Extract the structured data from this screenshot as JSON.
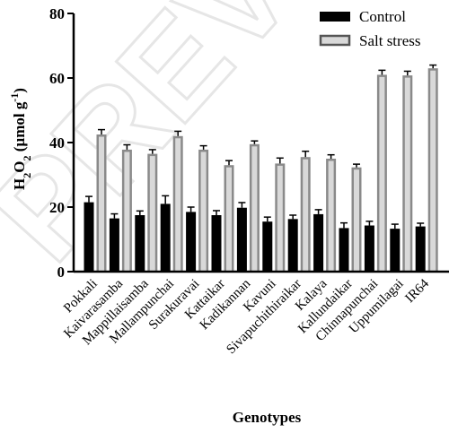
{
  "chart_data": {
    "type": "bar",
    "title": "",
    "xlabel": "Genotypes",
    "ylabel_main": "H",
    "ylabel_sub1": "2",
    "ylabel_mid": "O",
    "ylabel_sub2": "2",
    "ylabel_unit": " (µmol g",
    "ylabel_sup": "-1",
    "ylabel_end": ")",
    "ylim": [
      0,
      80
    ],
    "yticks": [
      0,
      20,
      40,
      60,
      80
    ],
    "categories": [
      "Pokkali",
      "Kaivarasamba",
      "Mappillaisamba",
      "Mallampunchai",
      "Surakuravai",
      "Kattaikar",
      "Kadikannan",
      "Kavuni",
      "Sivapuchithiraikar",
      "Kalaya",
      "Kallundaikar",
      "Chinnapunchai",
      "Uppumilagai",
      "IR64"
    ],
    "series": [
      {
        "name": "Control",
        "values": [
          21.5,
          16.5,
          17.5,
          21,
          18.5,
          17.5,
          19.8,
          15.5,
          16.3,
          17.8,
          13.5,
          14.3,
          13.3,
          14
        ],
        "errors": [
          1.8,
          1.4,
          1.3,
          2.5,
          1.5,
          1.4,
          1.6,
          1.4,
          1.2,
          1.4,
          1.6,
          1.3,
          1.4,
          1.0
        ]
      },
      {
        "name": "Salt stress",
        "values": [
          42.5,
          37.8,
          36.5,
          42,
          37.8,
          33,
          39.5,
          33.5,
          35.5,
          35,
          32.3,
          61,
          60.8,
          63
        ],
        "errors": [
          1.5,
          1.5,
          1.3,
          1.5,
          1.2,
          1.4,
          1.0,
          1.7,
          1.8,
          1.2,
          1.0,
          1.4,
          1.3,
          1.0
        ]
      }
    ],
    "legend": "top-right",
    "grid": false,
    "colors": {
      "control": "#000000",
      "salt_stress": "#8a8a8a",
      "salt_stress_inner": "#d9d9d9"
    }
  },
  "watermark": "PREVIEW"
}
